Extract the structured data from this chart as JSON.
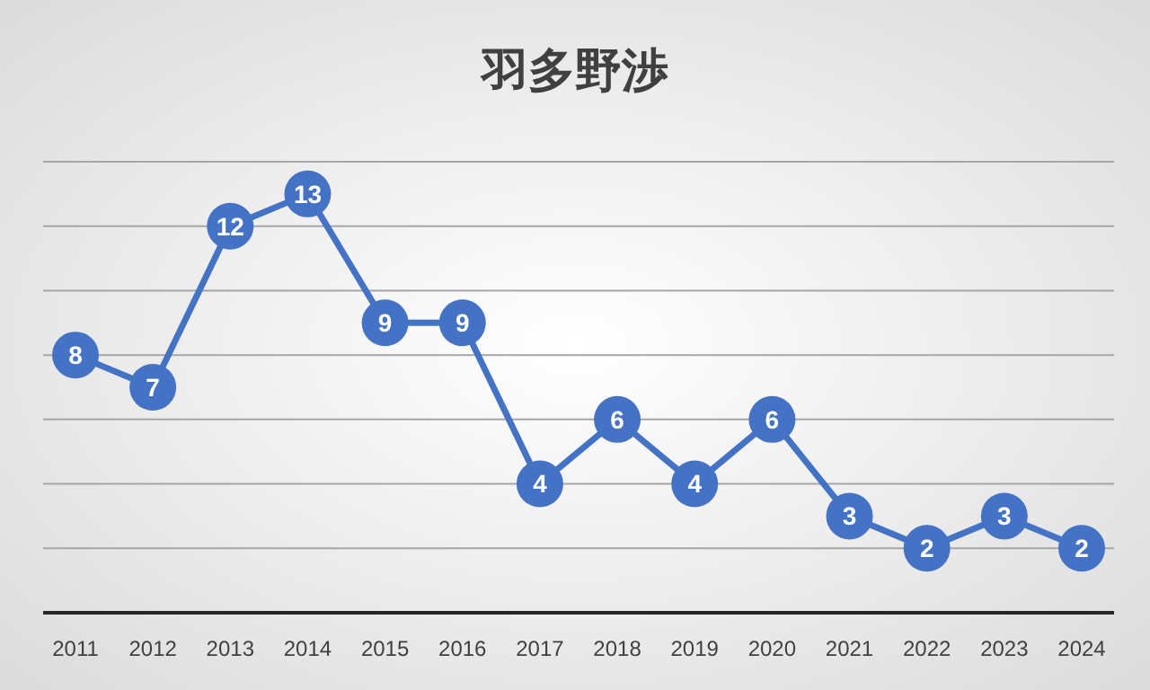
{
  "chart_data": {
    "type": "line",
    "title": "羽多野渉",
    "categories": [
      "2011",
      "2012",
      "2013",
      "2014",
      "2015",
      "2016",
      "2017",
      "2018",
      "2019",
      "2020",
      "2021",
      "2022",
      "2023",
      "2024"
    ],
    "series": [
      {
        "color": "#4472c4",
        "values": [
          8,
          7,
          12,
          13,
          9,
          9,
          4,
          6,
          4,
          6,
          3,
          2,
          3,
          2
        ]
      }
    ],
    "ylim": [
      0,
      14
    ],
    "yticks": [
      {
        "value": 0,
        "label": null
      },
      {
        "value": 2,
        "label": null
      },
      {
        "value": 4,
        "label": null
      },
      {
        "value": 6,
        "label": null
      },
      {
        "value": 8,
        "label": null
      },
      {
        "value": 10,
        "label": null
      },
      {
        "value": 12,
        "label": null
      },
      {
        "value": 14,
        "label": null
      }
    ],
    "grid": "y",
    "tick_labels": "x",
    "data_labels": true,
    "marker": "circle",
    "line_style": "solid"
  }
}
